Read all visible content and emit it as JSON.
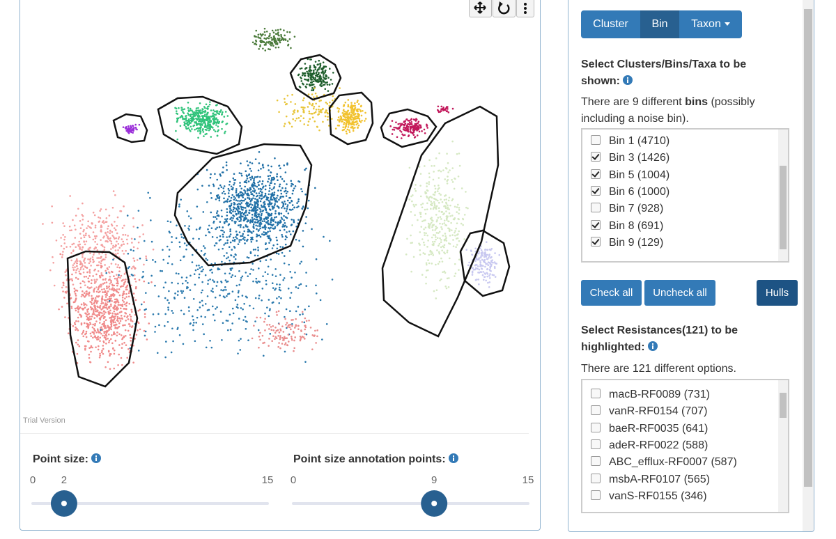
{
  "watermark": "Trial Version",
  "sliders": [
    {
      "label": "Point size:",
      "min": 0,
      "value": 2,
      "max": 15
    },
    {
      "label": "Point size annotation points:",
      "min": 0,
      "value": 9,
      "max": 15
    }
  ],
  "tabs": [
    "Cluster",
    "Bin",
    "Taxon"
  ],
  "active_tab": 1,
  "bins_heading": "Select Clusters/Bins/Taxa to be shown:",
  "bins_info": [
    "There are 9 different ",
    "bins",
    " (possibly including a noise bin)."
  ],
  "bins": [
    {
      "label": "Bin 1 (4710)",
      "checked": false
    },
    {
      "label": "Bin 3 (1426)",
      "checked": true
    },
    {
      "label": "Bin 5 (1004)",
      "checked": true
    },
    {
      "label": "Bin 6 (1000)",
      "checked": true
    },
    {
      "label": "Bin 7 (928)",
      "checked": false
    },
    {
      "label": "Bin 8 (691)",
      "checked": true
    },
    {
      "label": "Bin 9 (129)",
      "checked": true
    }
  ],
  "buttons": [
    "Check all",
    "Uncheck all",
    "Hulls"
  ],
  "resistances_heading": "Select Resistances(121) to be highlighted:",
  "resistances_info": "There are 121 different options.",
  "resistances": [
    "macB-RF0089 (731)",
    "vanR-RF0154 (707)",
    "baeR-RF0035 (641)",
    "adeR-RF0022 (588)",
    "ABC_efflux-RF0007 (587)",
    "msbA-RF0107 (565)",
    "vanS-RF0155 (346)"
  ]
}
